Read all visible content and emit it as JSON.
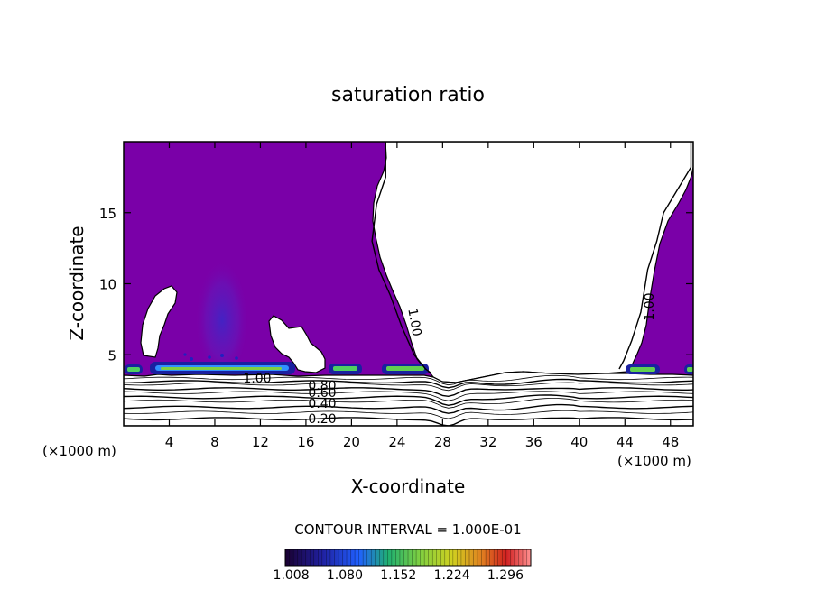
{
  "chart_data": {
    "type": "contour",
    "title": "saturation ratio",
    "xlabel": "X-coordinate",
    "ylabel": "Z-coordinate",
    "xunit": "(×1000 m)",
    "xlim": [
      0,
      50
    ],
    "ylim": [
      0,
      20
    ],
    "xticks": [
      4,
      8,
      12,
      16,
      20,
      24,
      28,
      32,
      36,
      40,
      44,
      48
    ],
    "xtick_labels": [
      "4",
      "8",
      "12",
      "16",
      "20",
      "24",
      "28",
      "32",
      "36",
      "40",
      "44",
      "48"
    ],
    "yticks": [
      5,
      10,
      15
    ],
    "ytick_labels": [
      "5",
      "10",
      "15"
    ],
    "contour_interval_label": "CONTOUR INTERVAL = 1.000E-01",
    "contour_labels": [
      "1.00",
      "1.00",
      "1.00",
      "0.80",
      "0.60",
      "0.40",
      "0.20"
    ],
    "colorbar": {
      "ticks": [
        1.008,
        1.08,
        1.152,
        1.224,
        1.296
      ],
      "tick_labels": [
        "1.008",
        "1.080",
        "1.152",
        "1.224",
        "1.296"
      ],
      "colors": [
        "#2a0040",
        "#1a1aa0",
        "#2060ff",
        "#20c060",
        "#80d040",
        "#d0d020",
        "#e08020",
        "#d02020",
        "#ff8080"
      ]
    },
    "fill_color": "#7a00a8",
    "unsaturated_color": "#ffffff",
    "lines": [
      {
        "level": "1.00",
        "points": [
          [
            23.0,
            20
          ],
          [
            23.0,
            17.5
          ],
          [
            22.2,
            15.6
          ],
          [
            21.8,
            13
          ],
          [
            22.4,
            11
          ],
          [
            23.4,
            9.2
          ],
          [
            24.4,
            7
          ],
          [
            25.5,
            5
          ],
          [
            26.5,
            4.0
          ],
          [
            27.0,
            3.7
          ]
        ]
      },
      {
        "level": "1.00",
        "points": [
          [
            49.8,
            20
          ],
          [
            49.8,
            18.2
          ],
          [
            48.9,
            17
          ],
          [
            47.4,
            15
          ],
          [
            46.8,
            13
          ],
          [
            46.0,
            11
          ],
          [
            45.4,
            8
          ],
          [
            44.6,
            6
          ],
          [
            43.9,
            4.6
          ],
          [
            43.5,
            4.0
          ]
        ]
      }
    ],
    "layer_lines_z": [
      0.5,
      0.9,
      1.3,
      1.7,
      2.0,
      2.3,
      2.6,
      2.9,
      3.1,
      3.3
    ],
    "cloud_base_z": 3.7,
    "enhanced_band_x": [
      [
        0,
        1.6
      ],
      [
        2.8,
        15.0
      ],
      [
        18.0,
        21.0
      ],
      [
        23.0,
        26.7
      ],
      [
        44.2,
        47.0
      ],
      [
        48.3,
        50
      ]
    ]
  }
}
